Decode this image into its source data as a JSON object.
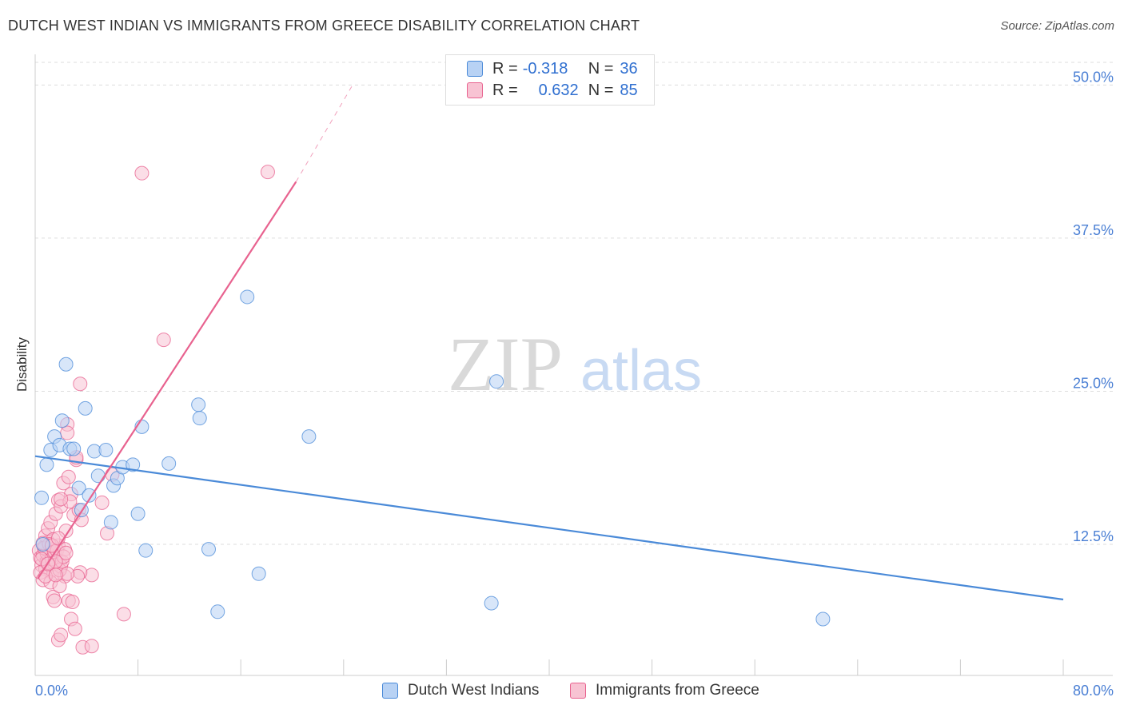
{
  "chart_data": {
    "type": "scatter",
    "title": "DUTCH WEST INDIAN VS IMMIGRANTS FROM GREECE DISABILITY CORRELATION CHART",
    "source": "Source: ZipAtlas.com",
    "ylabel": "Disability",
    "watermark": {
      "zip": "ZIP",
      "atlas": "atlas"
    },
    "xlim": [
      0,
      80
    ],
    "ylim": [
      1.8,
      52.5
    ],
    "x_tick_labels": [
      "0.0%",
      "80.0%"
    ],
    "y_ticks": [
      12.5,
      25.0,
      37.5,
      50.0
    ],
    "y_tick_labels": [
      "12.5%",
      "25.0%",
      "37.5%",
      "50.0%"
    ],
    "grid": "horizontal-dashed",
    "legend": {
      "placement": "top-center",
      "entries": [
        {
          "r_label": "R =",
          "r_value": "-0.318",
          "n_label": "N =",
          "n_value": "36"
        },
        {
          "r_label": "R =",
          "r_value": "0.632",
          "n_label": "N =",
          "n_value": "85"
        }
      ]
    },
    "series": [
      {
        "name": "Dutch West Indians",
        "color": "#4a8ad8",
        "fill": "#b8d2f4",
        "trend": {
          "x": [
            0.0,
            80.0
          ],
          "y": [
            19.7,
            8.0
          ]
        },
        "points": [
          [
            0.5,
            16.3
          ],
          [
            0.9,
            19.0
          ],
          [
            1.2,
            20.2
          ],
          [
            1.5,
            21.3
          ],
          [
            1.9,
            20.6
          ],
          [
            2.1,
            22.6
          ],
          [
            2.4,
            27.2
          ],
          [
            2.7,
            20.3
          ],
          [
            3.0,
            20.3
          ],
          [
            3.4,
            17.1
          ],
          [
            3.6,
            15.3
          ],
          [
            3.9,
            23.6
          ],
          [
            4.2,
            16.5
          ],
          [
            4.6,
            20.1
          ],
          [
            4.9,
            18.1
          ],
          [
            5.5,
            20.2
          ],
          [
            5.9,
            14.3
          ],
          [
            6.1,
            17.3
          ],
          [
            6.4,
            17.9
          ],
          [
            6.8,
            18.8
          ],
          [
            7.6,
            19.0
          ],
          [
            8.0,
            15.0
          ],
          [
            8.3,
            22.1
          ],
          [
            8.6,
            12.0
          ],
          [
            10.4,
            19.1
          ],
          [
            12.7,
            23.9
          ],
          [
            12.8,
            22.8
          ],
          [
            13.5,
            12.1
          ],
          [
            14.2,
            7.0
          ],
          [
            16.5,
            32.7
          ],
          [
            17.4,
            10.1
          ],
          [
            21.3,
            21.3
          ],
          [
            35.5,
            7.7
          ],
          [
            35.9,
            25.8
          ],
          [
            61.3,
            6.4
          ],
          [
            0.6,
            12.5
          ]
        ]
      },
      {
        "name": "Immigrants from Greece",
        "color": "#e8628f",
        "fill": "#f8c3d3",
        "trend": {
          "x": [
            0.2,
            20.3
          ],
          "y": [
            9.7,
            42.1
          ],
          "dashed_to": [
            24.7,
            50.0
          ]
        },
        "points": [
          [
            0.3,
            12.0
          ],
          [
            0.4,
            11.4
          ],
          [
            0.5,
            10.8
          ],
          [
            0.6,
            11.6
          ],
          [
            0.7,
            12.3
          ],
          [
            0.8,
            10.5
          ],
          [
            0.9,
            11.1
          ],
          [
            1.0,
            12.7
          ],
          [
            1.1,
            11.9
          ],
          [
            1.2,
            10.3
          ],
          [
            1.3,
            11.5
          ],
          [
            1.4,
            12.1
          ],
          [
            1.5,
            10.9
          ],
          [
            1.6,
            11.7
          ],
          [
            1.7,
            10.1
          ],
          [
            1.8,
            12.4
          ],
          [
            1.9,
            11.2
          ],
          [
            2.0,
            10.7
          ],
          [
            0.4,
            10.2
          ],
          [
            0.6,
            9.6
          ],
          [
            0.8,
            13.2
          ],
          [
            1.0,
            13.8
          ],
          [
            1.2,
            14.3
          ],
          [
            1.4,
            12.9
          ],
          [
            1.6,
            15.0
          ],
          [
            1.8,
            16.1
          ],
          [
            2.0,
            15.6
          ],
          [
            2.2,
            17.5
          ],
          [
            2.4,
            13.6
          ],
          [
            2.6,
            18.0
          ],
          [
            2.8,
            16.6
          ],
          [
            3.0,
            14.9
          ],
          [
            3.2,
            19.4
          ],
          [
            3.4,
            15.3
          ],
          [
            3.6,
            14.5
          ],
          [
            2.5,
            22.3
          ],
          [
            2.5,
            21.6
          ],
          [
            3.2,
            19.6
          ],
          [
            3.5,
            25.6
          ],
          [
            5.2,
            15.9
          ],
          [
            5.6,
            13.4
          ],
          [
            6.0,
            18.2
          ],
          [
            1.4,
            8.2
          ],
          [
            1.5,
            7.9
          ],
          [
            2.6,
            7.9
          ],
          [
            2.9,
            7.8
          ],
          [
            2.8,
            6.4
          ],
          [
            3.1,
            5.6
          ],
          [
            1.8,
            4.7
          ],
          [
            2.0,
            5.1
          ],
          [
            3.7,
            4.1
          ],
          [
            4.4,
            4.2
          ],
          [
            4.4,
            10.0
          ],
          [
            3.5,
            10.2
          ],
          [
            3.3,
            9.9
          ],
          [
            6.9,
            6.8
          ],
          [
            2.3,
            9.9
          ],
          [
            1.2,
            9.4
          ],
          [
            1.0,
            11.0
          ],
          [
            0.9,
            11.8
          ],
          [
            0.7,
            12.2
          ],
          [
            1.1,
            12.5
          ],
          [
            1.3,
            11.3
          ],
          [
            1.5,
            11.9
          ],
          [
            1.7,
            12.0
          ],
          [
            1.9,
            10.4
          ],
          [
            2.1,
            11.1
          ],
          [
            2.3,
            12.1
          ],
          [
            2.5,
            10.1
          ],
          [
            1.9,
            9.1
          ],
          [
            2.2,
            11.5
          ],
          [
            1.6,
            11.1
          ],
          [
            0.5,
            11.3
          ],
          [
            0.6,
            12.6
          ],
          [
            0.8,
            9.9
          ],
          [
            1.0,
            10.9
          ],
          [
            1.3,
            12.4
          ],
          [
            1.6,
            10.0
          ],
          [
            1.8,
            13.0
          ],
          [
            2.4,
            11.8
          ],
          [
            8.3,
            42.8
          ],
          [
            10.0,
            29.2
          ],
          [
            18.1,
            42.9
          ],
          [
            2.7,
            16.0
          ],
          [
            2.0,
            16.2
          ]
        ]
      }
    ]
  }
}
